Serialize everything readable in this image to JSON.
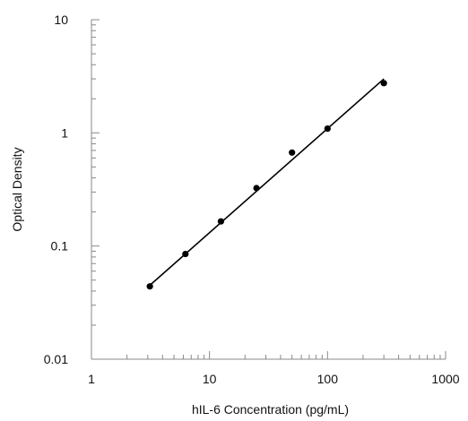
{
  "chart_data": {
    "type": "scatter",
    "title": "",
    "xlabel": "hIL-6 Concentration (pg/mL)",
    "ylabel": "Optical Density",
    "xscale": "log",
    "yscale": "log",
    "xlim": [
      1,
      1000
    ],
    "ylim": [
      0.01,
      10
    ],
    "xticks": [
      1,
      10,
      100,
      1000
    ],
    "xtick_labels": [
      "1",
      "10",
      "100",
      "1000"
    ],
    "yticks": [
      0.01,
      0.1,
      1,
      10
    ],
    "ytick_labels": [
      "0.01",
      "0.1",
      "1",
      "10"
    ],
    "grid": false,
    "legend": "none",
    "colors": {
      "marker": "#000000",
      "line": "#000000",
      "axis": "#888888"
    },
    "series": [
      {
        "points": [
          {
            "x": 3.125,
            "y": 0.044
          },
          {
            "x": 6.25,
            "y": 0.085
          },
          {
            "x": 12.5,
            "y": 0.165
          },
          {
            "x": 25,
            "y": 0.325
          },
          {
            "x": 50,
            "y": 0.67
          },
          {
            "x": 100,
            "y": 1.09
          },
          {
            "x": 300,
            "y": 2.75
          }
        ]
      }
    ],
    "fit_line": {
      "x": [
        3.125,
        300
      ],
      "y": [
        0.045,
        3.0
      ]
    }
  }
}
